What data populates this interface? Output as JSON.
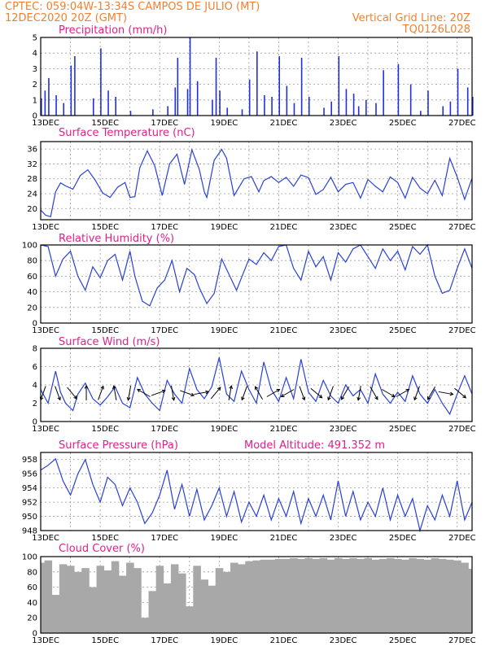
{
  "header": {
    "line1_left": "CPTEC:  059:04W-13:34S  CAMPOS DE JULIO (MT)",
    "line2_left": "12DEC2020 20Z (GMT)",
    "line2_right": "Vertical Grid Line: 20Z",
    "line3_right": "TQ0126L028"
  },
  "colors": {
    "header": "#f08030",
    "panel_title": "#e0208a",
    "series": "#2840d8",
    "precip_bar": "#2030e0",
    "cloud_fill": "#a8a8a8",
    "wind_arrow": "#000000"
  },
  "x_axis": {
    "start": "12DEC2020 20Z",
    "end": "27DEC2020 00Z",
    "tick_labels": [
      "13DEC",
      "15DEC",
      "17DEC",
      "19DEC",
      "21DEC",
      "23DEC",
      "25DEC",
      "27DEC"
    ]
  },
  "chart_data": [
    {
      "type": "bar",
      "title": "Precipitation (mm/h)",
      "ylim": [
        0,
        5
      ],
      "yticks": [
        "0",
        "1",
        "2",
        "3",
        "4",
        "5"
      ],
      "x_hours": [
        0,
        3,
        6,
        12,
        18,
        24,
        27,
        42,
        48,
        54,
        60,
        72,
        90,
        102,
        108,
        110,
        118,
        120,
        126,
        138,
        141,
        144,
        150,
        162,
        168,
        174,
        180,
        186,
        192,
        198,
        204,
        210,
        216,
        228,
        234,
        240,
        246,
        252,
        256,
        262,
        270,
        276,
        288,
        298,
        306,
        312,
        324,
        330,
        336,
        344,
        348
      ],
      "values": [
        1.1,
        1.6,
        2.4,
        1.3,
        0.8,
        3.2,
        3.8,
        1.1,
        4.3,
        1.6,
        1.2,
        0.3,
        0.4,
        0.6,
        1.8,
        3.7,
        1.7,
        5.0,
        2.2,
        1.0,
        3.7,
        1.6,
        0.5,
        0.4,
        2.3,
        4.1,
        1.3,
        1.2,
        3.8,
        1.9,
        0.8,
        3.7,
        1.2,
        0.5,
        0.9,
        3.8,
        1.7,
        1.4,
        0.6,
        1.0,
        0.8,
        2.9,
        3.3,
        2.0,
        0.3,
        1.6,
        0.6,
        0.9,
        3.0,
        1.8,
        1.2
      ]
    },
    {
      "type": "line",
      "title": "Surface Temperature (nC)",
      "ylim": [
        17,
        38
      ],
      "yticks": [
        "20",
        "24",
        "28",
        "32",
        "36"
      ],
      "x_hours": [
        0,
        4,
        8,
        12,
        16,
        20,
        26,
        32,
        38,
        44,
        50,
        56,
        62,
        68,
        72,
        76,
        80,
        86,
        92,
        98,
        104,
        110,
        116,
        122,
        128,
        132,
        134,
        140,
        146,
        150,
        156,
        164,
        170,
        176,
        180,
        186,
        192,
        198,
        204,
        210,
        216,
        222,
        228,
        234,
        240,
        246,
        252,
        258,
        264,
        270,
        276,
        282,
        288,
        294,
        300,
        306,
        312,
        318,
        324,
        330,
        336,
        342,
        348
      ],
      "values": [
        19.6,
        18.2,
        17.8,
        24.5,
        26.9,
        26.1,
        25.2,
        28.9,
        30.4,
        27.6,
        24.2,
        23.0,
        25.7,
        27.0,
        23.0,
        23.2,
        31.0,
        35.5,
        31.5,
        23.5,
        32.0,
        34.6,
        26.5,
        35.8,
        30.5,
        24.5,
        23.0,
        33.0,
        35.9,
        33.5,
        23.5,
        28.0,
        28.6,
        24.5,
        27.5,
        28.6,
        27.0,
        28.4,
        26.0,
        29.0,
        28.3,
        23.8,
        25.1,
        28.4,
        24.5,
        26.5,
        27.0,
        22.8,
        27.8,
        26.0,
        24.5,
        28.5,
        27.0,
        22.8,
        28.4,
        25.5,
        24.0,
        27.6,
        23.5,
        33.5,
        28.5,
        22.5,
        28.2
      ]
    },
    {
      "type": "line",
      "title": "Relative Humidity (%)",
      "ylim": [
        0,
        100
      ],
      "yticks": [
        "0",
        "20",
        "40",
        "60",
        "80",
        "100"
      ],
      "x_hours": [
        0,
        6,
        12,
        18,
        24,
        30,
        36,
        42,
        48,
        54,
        60,
        66,
        72,
        76,
        82,
        88,
        94,
        100,
        106,
        112,
        118,
        124,
        128,
        134,
        140,
        146,
        152,
        158,
        162,
        168,
        174,
        180,
        186,
        192,
        198,
        204,
        210,
        216,
        222,
        228,
        234,
        240,
        246,
        252,
        258,
        264,
        270,
        276,
        282,
        288,
        294,
        300,
        306,
        312,
        318,
        324,
        330,
        336,
        342,
        348
      ],
      "values": [
        100,
        98,
        60,
        82,
        92,
        60,
        42,
        72,
        58,
        80,
        88,
        55,
        92,
        60,
        28,
        22,
        45,
        55,
        80,
        40,
        70,
        62,
        45,
        25,
        38,
        82,
        62,
        42,
        58,
        82,
        75,
        90,
        80,
        98,
        100,
        70,
        55,
        92,
        72,
        85,
        55,
        90,
        78,
        95,
        100,
        85,
        70,
        95,
        80,
        92,
        68,
        98,
        88,
        100,
        60,
        38,
        42,
        70,
        95,
        70
      ]
    },
    {
      "type": "line",
      "title": "Surface Wind (m/s)",
      "ylim": [
        0,
        8
      ],
      "yticks": [
        "0",
        "2",
        "4",
        "6",
        "8"
      ],
      "x_hours": [
        0,
        6,
        12,
        16,
        20,
        26,
        30,
        36,
        42,
        48,
        54,
        60,
        66,
        72,
        78,
        84,
        90,
        96,
        102,
        108,
        114,
        120,
        126,
        132,
        138,
        144,
        150,
        156,
        162,
        168,
        174,
        180,
        186,
        192,
        198,
        204,
        210,
        216,
        222,
        228,
        234,
        240,
        246,
        252,
        258,
        264,
        270,
        276,
        282,
        288,
        294,
        300,
        306,
        312,
        318,
        324,
        330,
        336,
        342,
        348
      ],
      "values": [
        3.5,
        2.0,
        5.5,
        3.2,
        2.0,
        1.2,
        3.0,
        4.2,
        2.5,
        1.8,
        2.7,
        3.8,
        2.0,
        1.5,
        4.8,
        3.0,
        2.0,
        1.2,
        4.5,
        3.0,
        2.0,
        5.8,
        3.5,
        2.5,
        3.8,
        7.0,
        3.0,
        2.2,
        5.5,
        3.5,
        2.0,
        6.5,
        3.5,
        2.2,
        4.8,
        2.5,
        6.8,
        3.2,
        2.2,
        4.5,
        2.8,
        2.0,
        4.0,
        2.8,
        3.5,
        2.0,
        5.2,
        3.0,
        2.0,
        3.2,
        2.2,
        5.0,
        3.0,
        2.0,
        3.5,
        2.0,
        0.8,
        3.0,
        5.0,
        3.0
      ]
    },
    {
      "type": "line",
      "title": "Surface Pressure (hPa)",
      "annotation": "Model Altitude: 491.352 m",
      "ylim": [
        948,
        959
      ],
      "yticks": [
        "948",
        "950",
        "952",
        "954",
        "956",
        "958"
      ],
      "x_hours": [
        0,
        6,
        12,
        18,
        24,
        30,
        36,
        42,
        48,
        54,
        60,
        66,
        72,
        78,
        84,
        90,
        96,
        102,
        108,
        114,
        120,
        126,
        132,
        138,
        144,
        150,
        156,
        162,
        168,
        174,
        180,
        186,
        192,
        198,
        204,
        210,
        216,
        222,
        228,
        234,
        240,
        246,
        252,
        258,
        264,
        270,
        276,
        282,
        288,
        294,
        300,
        306,
        312,
        318,
        324,
        330,
        336,
        342,
        348
      ],
      "values": [
        956.5,
        957.2,
        958.1,
        955.0,
        953.0,
        956.0,
        958.0,
        954.5,
        952.0,
        955.5,
        954.5,
        951.5,
        954.0,
        952.0,
        949.0,
        950.5,
        953.0,
        956.5,
        951.0,
        954.5,
        950.0,
        953.8,
        949.5,
        951.5,
        954.0,
        950.0,
        953.5,
        949.2,
        952.0,
        950.0,
        953.0,
        949.5,
        952.5,
        950.0,
        953.5,
        949.0,
        952.5,
        950.0,
        953.0,
        949.5,
        955.0,
        950.0,
        953.5,
        949.5,
        952.0,
        950.0,
        954.0,
        949.5,
        953.0,
        950.0,
        952.5,
        948.0,
        951.5,
        949.5,
        953.0,
        950.0,
        955.0,
        949.5,
        952.0
      ]
    },
    {
      "type": "area",
      "title": "Cloud Cover (%)",
      "ylim": [
        0,
        100
      ],
      "yticks": [
        "0",
        "20",
        "40",
        "60",
        "80",
        "100"
      ],
      "x_hours": [
        0,
        6,
        12,
        18,
        24,
        30,
        36,
        42,
        48,
        54,
        60,
        66,
        72,
        78,
        84,
        90,
        96,
        102,
        108,
        114,
        120,
        126,
        132,
        138,
        144,
        150,
        156,
        162,
        168,
        174,
        180,
        186,
        192,
        198,
        204,
        210,
        216,
        222,
        228,
        234,
        240,
        246,
        252,
        258,
        264,
        270,
        276,
        282,
        288,
        294,
        300,
        306,
        312,
        318,
        324,
        330,
        336,
        342,
        348
      ],
      "values": [
        92,
        95,
        50,
        90,
        88,
        80,
        85,
        60,
        88,
        82,
        94,
        75,
        92,
        85,
        20,
        55,
        88,
        65,
        90,
        78,
        35,
        88,
        70,
        62,
        85,
        80,
        92,
        90,
        94,
        95,
        96,
        96,
        97,
        97,
        98,
        97,
        98,
        97,
        98,
        96,
        98,
        97,
        98,
        97,
        98,
        96,
        97,
        98,
        97,
        96,
        98,
        97,
        96,
        98,
        97,
        96,
        95,
        92,
        84
      ]
    }
  ]
}
